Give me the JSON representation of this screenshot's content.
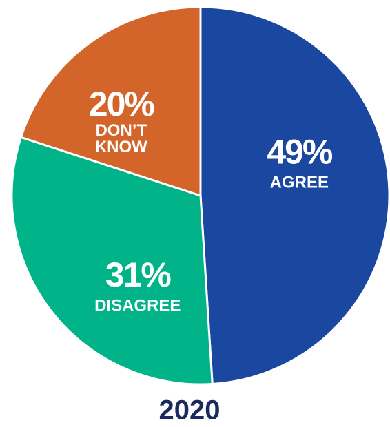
{
  "chart_data": {
    "type": "pie",
    "categories": [
      "AGREE",
      "DISAGREE",
      "DON’T KNOW"
    ],
    "values": [
      49,
      31,
      20
    ],
    "value_labels": [
      "49%",
      "31%",
      "20%"
    ],
    "colors": [
      "#1a47a0",
      "#00b388",
      "#d4652a"
    ],
    "caption": "2020"
  }
}
